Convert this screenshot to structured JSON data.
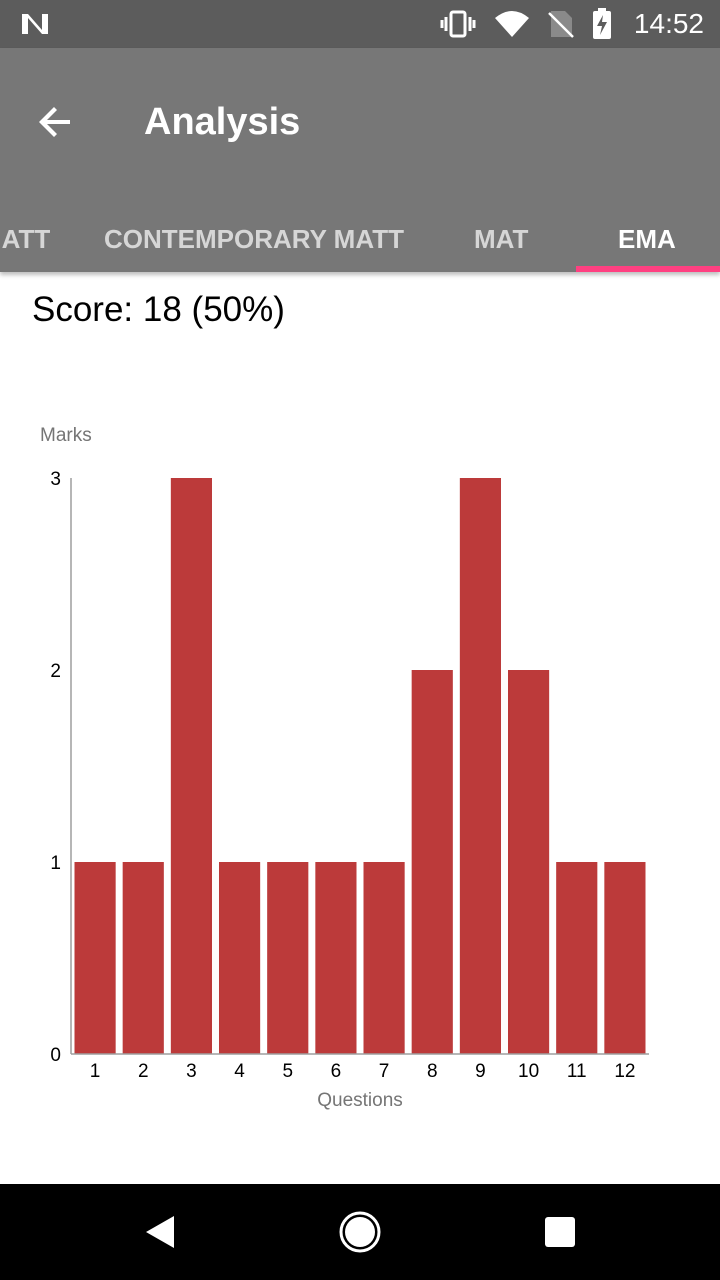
{
  "status_bar": {
    "time": "14:52",
    "icons": [
      "notification-n-icon",
      "vibrate-icon",
      "wifi-icon",
      "no-sim-icon",
      "battery-charging-icon"
    ]
  },
  "app_bar": {
    "title": "Analysis",
    "back_icon": "arrow-back-icon"
  },
  "tabs": [
    {
      "label": "MATT",
      "active": false
    },
    {
      "label": "CONTEMPORARY MATT",
      "active": false
    },
    {
      "label": "MAT",
      "active": false
    },
    {
      "label": "EMA",
      "active": true
    }
  ],
  "colors": {
    "status_bar": "#5c5c5c",
    "app_bar": "#777777",
    "tab_indicator": "#ff4081",
    "bar": "#bc3a3a"
  },
  "score_text": "Score: 18 (50%)",
  "chart_data": {
    "type": "bar",
    "categories": [
      "1",
      "2",
      "3",
      "4",
      "5",
      "6",
      "7",
      "8",
      "9",
      "10",
      "11",
      "12"
    ],
    "values": [
      1,
      1,
      3,
      1,
      1,
      1,
      1,
      2,
      3,
      2,
      1,
      1
    ],
    "xlabel": "Questions",
    "ylabel": "Marks",
    "ylim": [
      0,
      3
    ],
    "yticks": [
      "0",
      "1",
      "2",
      "3"
    ],
    "grid": false,
    "legend": "none"
  },
  "nav_bar": {
    "buttons": [
      "back-triangle-icon",
      "home-circle-icon",
      "recents-square-icon"
    ]
  }
}
